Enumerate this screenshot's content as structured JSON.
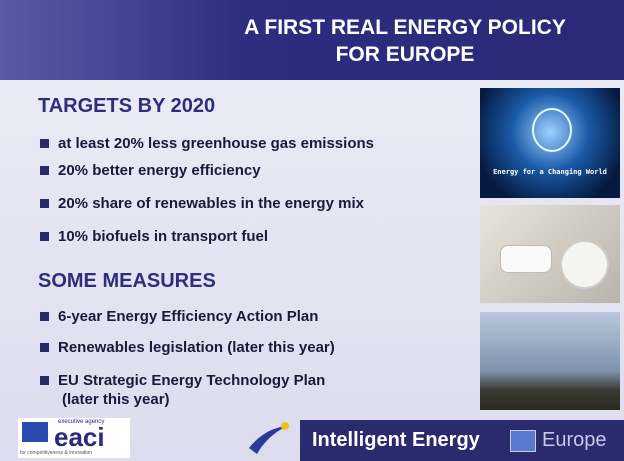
{
  "header": {
    "title_lines": [
      "A FIRST REAL ENERGY POLICY",
      "FOR EUROPE"
    ]
  },
  "sections": [
    {
      "heading": "TARGETS BY 2020",
      "items": [
        [
          "at least 20% less greenhouse gas emissions"
        ],
        [
          "20% better energy efficiency"
        ],
        [
          "20% share of renewables in the energy mix"
        ],
        [
          "10% biofuels in transport fuel"
        ]
      ]
    },
    {
      "heading": "SOME MEASURES",
      "items": [
        [
          "6-year Energy Efficiency Action Plan"
        ],
        [
          "Renewables legislation (later this year)"
        ],
        [
          "EU Strategic Energy Technology Plan",
          "(later this year)"
        ]
      ]
    }
  ],
  "images": {
    "caption": "Energy for a Changing World"
  },
  "footer": {
    "logo": {
      "top": "executive agency",
      "name": "eaci",
      "bottom": "for competitiveness & innovation"
    },
    "banner": {
      "name": "Intelligent Energy",
      "region": "Europe"
    }
  }
}
